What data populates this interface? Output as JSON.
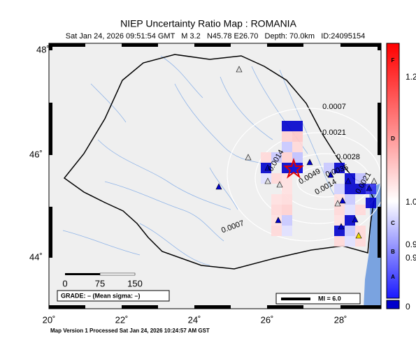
{
  "header": {
    "title": "NIEP Uncertainty Ratio Map : ROMANIA",
    "subtitle": "Sat Jan 24, 2026 09:51:54 GMT   M 3.2   N45.78 E26.70   Depth: 70.0km   ID:24095154"
  },
  "map": {
    "lat_labels": [
      "48˚",
      "46˚",
      "44˚"
    ],
    "lon_labels": [
      "20˚",
      "22˚",
      "24˚",
      "26˚",
      "28˚"
    ],
    "contour_labels": [
      "0.0007",
      "0.0021",
      "0.0028",
      "0.0014",
      "0.0049",
      "0.0035",
      "0.0014",
      "0.0021",
      "0.0007"
    ],
    "scale_labels": [
      "0",
      "75",
      "150"
    ],
    "grade": "GRADE: – (Mean sigma: –)",
    "magnitude_label": "MI = 6.0"
  },
  "colorbar": {
    "grades": [
      "F",
      "D",
      "C",
      "B",
      "A"
    ],
    "values": [
      "1.2",
      "1.0",
      "0.9",
      "0.9",
      "0"
    ]
  },
  "footer": "Map Version 1 Processed Sat Jan 24, 2026 10:24:57 AM GST"
}
